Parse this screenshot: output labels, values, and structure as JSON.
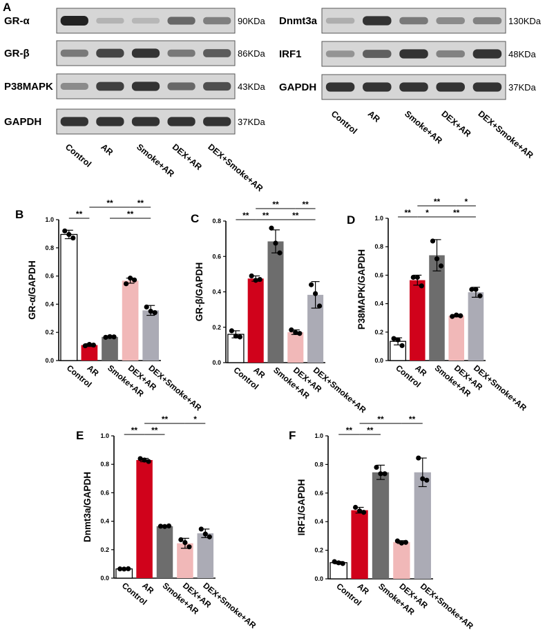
{
  "panel_a": {
    "letter": "A",
    "left_blot": {
      "rows": [
        {
          "protein": "GR-α",
          "size": "90KDa",
          "intensities": [
            0.95,
            0.12,
            0.1,
            0.55,
            0.42
          ]
        },
        {
          "protein": "GR-β",
          "size": "86KDa",
          "intensities": [
            0.45,
            0.75,
            0.85,
            0.45,
            0.62
          ]
        },
        {
          "protein": "P38MAPK",
          "size": "43KDa",
          "intensities": [
            0.35,
            0.78,
            0.85,
            0.55,
            0.7
          ]
        },
        {
          "protein": "GAPDH",
          "size": "37KDa",
          "intensities": [
            0.85,
            0.85,
            0.85,
            0.85,
            0.85
          ]
        }
      ],
      "lanes": [
        "Control",
        "AR",
        "Smoke+AR",
        "DEX+AR",
        "DEX+Smoke+AR"
      ]
    },
    "right_blot": {
      "rows": [
        {
          "protein": "Dnmt3a",
          "size": "130KDa",
          "intensities": [
            0.15,
            0.85,
            0.45,
            0.35,
            0.4
          ]
        },
        {
          "protein": "IRF1",
          "size": "48KDa",
          "intensities": [
            0.3,
            0.6,
            0.85,
            0.4,
            0.85
          ]
        },
        {
          "protein": "GAPDH",
          "size": "37KDa",
          "intensities": [
            0.85,
            0.85,
            0.85,
            0.85,
            0.85
          ]
        }
      ],
      "lanes": [
        "Control",
        "AR",
        "Smoke+AR",
        "DEX+AR",
        "DEX+Smoke+AR"
      ]
    }
  },
  "colors": {
    "control": "#ffffff",
    "ar": "#d0021b",
    "smoke_ar": "#6d6d6d",
    "dex_ar": "#f1b8b8",
    "dex_smoke_ar": "#ababb5"
  },
  "chart_data": [
    {
      "panel": "B",
      "type": "bar",
      "ylabel": "GR-α/GAPDH",
      "categories": [
        "Control",
        "AR",
        "Smoke+AR",
        "DEX+AR",
        "DEX+Smoke+AR"
      ],
      "values": [
        0.895,
        0.11,
        0.168,
        0.567,
        0.356
      ],
      "errors": [
        0.03,
        0.01,
        0.008,
        0.018,
        0.035
      ],
      "points": [
        [
          0.92,
          0.87,
          0.895
        ],
        [
          0.105,
          0.11,
          0.115
        ],
        [
          0.165,
          0.168,
          0.17
        ],
        [
          0.545,
          0.572,
          0.585
        ],
        [
          0.38,
          0.34,
          0.35
        ]
      ],
      "ylim": [
        0,
        1.0
      ],
      "yticks": [
        "0.0",
        "0.2",
        "0.4",
        "0.6",
        "0.8",
        "1.0"
      ],
      "significance": [
        {
          "from": 0,
          "to": 1,
          "label": "**",
          "level": 0
        },
        {
          "from": 1,
          "to": 3,
          "label": "**",
          "level": 1
        },
        {
          "from": 3,
          "to": 4,
          "label": "**",
          "level": 1
        },
        {
          "from": 2,
          "to": 4,
          "label": "**",
          "level": 0
        }
      ]
    },
    {
      "panel": "C",
      "type": "bar",
      "ylabel": "GR-β/GAPDH",
      "categories": [
        "Control",
        "AR",
        "Smoke+AR",
        "DEX+AR",
        "DEX+Smoke+AR"
      ],
      "values": [
        0.16,
        0.475,
        0.685,
        0.172,
        0.383
      ],
      "errors": [
        0.02,
        0.015,
        0.065,
        0.013,
        0.075
      ],
      "points": [
        [
          0.18,
          0.145,
          0.15
        ],
        [
          0.49,
          0.47,
          0.465
        ],
        [
          0.76,
          0.62,
          0.675
        ],
        [
          0.185,
          0.165,
          0.17
        ],
        [
          0.44,
          0.32,
          0.39
        ]
      ],
      "ylim": [
        0,
        0.8
      ],
      "yticks": [
        "0.0",
        "0.2",
        "0.4",
        "0.6",
        "0.8"
      ],
      "significance": [
        {
          "from": 0,
          "to": 1,
          "label": "**",
          "level": 0
        },
        {
          "from": 1,
          "to": 2,
          "label": "**",
          "level": 0
        },
        {
          "from": 1,
          "to": 3,
          "label": "**",
          "level": 1
        },
        {
          "from": 3,
          "to": 4,
          "label": "**",
          "level": 1
        },
        {
          "from": 2,
          "to": 4,
          "label": "**",
          "level": 0
        }
      ]
    },
    {
      "panel": "D",
      "type": "bar",
      "ylabel": "P38MAPK/GAPDH",
      "categories": [
        "Control",
        "AR",
        "Smoke+AR",
        "DEX+AR",
        "DEX+Smoke+AR"
      ],
      "values": [
        0.135,
        0.565,
        0.74,
        0.315,
        0.48
      ],
      "errors": [
        0.025,
        0.035,
        0.11,
        0.008,
        0.035
      ],
      "points": [
        [
          0.155,
          0.105,
          0.145
        ],
        [
          0.585,
          0.525,
          0.585
        ],
        [
          0.84,
          0.665,
          0.715
        ],
        [
          0.31,
          0.315,
          0.32
        ],
        [
          0.5,
          0.455,
          0.5
        ]
      ],
      "ylim": [
        0,
        1.0
      ],
      "yticks": [
        "0.0",
        "0.2",
        "0.4",
        "0.6",
        "0.8",
        "1.0"
      ],
      "significance": [
        {
          "from": 0,
          "to": 1,
          "label": "**",
          "level": 0
        },
        {
          "from": 1,
          "to": 2,
          "label": "*",
          "level": 0
        },
        {
          "from": 1,
          "to": 3,
          "label": "**",
          "level": 1
        },
        {
          "from": 3,
          "to": 4,
          "label": "*",
          "level": 1
        },
        {
          "from": 2,
          "to": 4,
          "label": "**",
          "level": 0
        }
      ]
    },
    {
      "panel": "E",
      "type": "bar",
      "ylabel": "Dnmt3a/GAPDH",
      "categories": [
        "Control",
        "AR",
        "Smoke+AR",
        "DEX+AR",
        "DEX+Smoke+AR"
      ],
      "values": [
        0.065,
        0.83,
        0.365,
        0.245,
        0.315
      ],
      "errors": [
        0.003,
        0.012,
        0.004,
        0.035,
        0.03
      ],
      "points": [
        [
          0.065,
          0.066,
          0.064
        ],
        [
          0.84,
          0.82,
          0.83
        ],
        [
          0.365,
          0.367,
          0.363
        ],
        [
          0.27,
          0.22,
          0.25
        ],
        [
          0.345,
          0.29,
          0.31
        ]
      ],
      "ylim": [
        0,
        1.0
      ],
      "yticks": [
        "0.0",
        "0.2",
        "0.4",
        "0.6",
        "0.8",
        "1.0"
      ],
      "significance": [
        {
          "from": 0,
          "to": 1,
          "label": "**",
          "level": 0
        },
        {
          "from": 1,
          "to": 2,
          "label": "**",
          "level": 0
        },
        {
          "from": 1,
          "to": 3,
          "label": "**",
          "level": 1
        },
        {
          "from": 3,
          "to": 4,
          "label": "*",
          "level": 1
        }
      ]
    },
    {
      "panel": "F",
      "type": "bar",
      "ylabel": "IRF1/GAPDH",
      "categories": [
        "Control",
        "AR",
        "Smoke+AR",
        "DEX+AR",
        "DEX+Smoke+AR"
      ],
      "values": [
        0.113,
        0.48,
        0.745,
        0.257,
        0.745
      ],
      "errors": [
        0.008,
        0.02,
        0.05,
        0.01,
        0.1
      ],
      "points": [
        [
          0.12,
          0.107,
          0.112
        ],
        [
          0.5,
          0.465,
          0.475
        ],
        [
          0.78,
          0.735,
          0.735
        ],
        [
          0.265,
          0.255,
          0.25
        ],
        [
          0.845,
          0.69,
          0.7
        ]
      ],
      "ylim": [
        0,
        1.0
      ],
      "yticks": [
        "0.0",
        "0.2",
        "0.4",
        "0.6",
        "0.8",
        "1.0"
      ],
      "significance": [
        {
          "from": 0,
          "to": 1,
          "label": "**",
          "level": 0
        },
        {
          "from": 1,
          "to": 2,
          "label": "**",
          "level": 0
        },
        {
          "from": 1,
          "to": 3,
          "label": "**",
          "level": 1
        },
        {
          "from": 3,
          "to": 4,
          "label": "**",
          "level": 1
        }
      ]
    }
  ]
}
